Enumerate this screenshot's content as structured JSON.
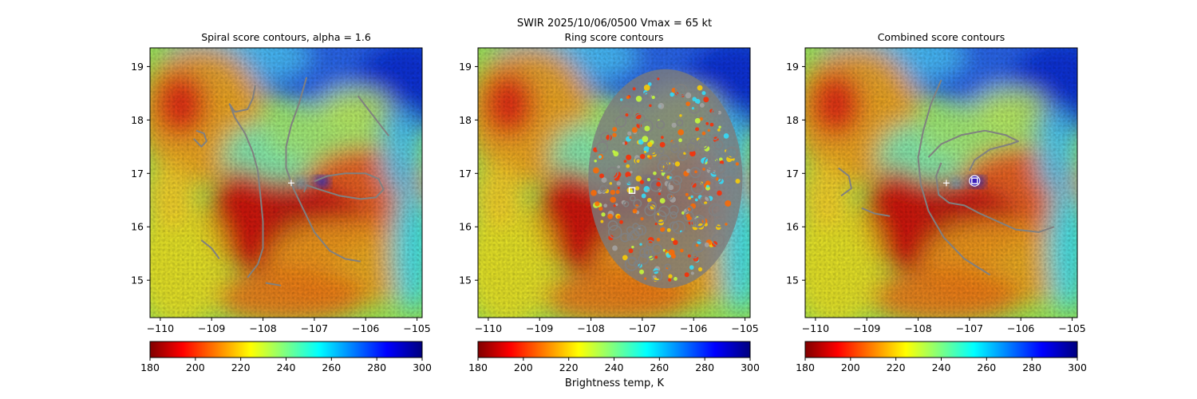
{
  "figure": {
    "suptitle": "SWIR  2025/10/06/0500    Vmax = 65 kt",
    "colorbar_label": "Brightness temp, K"
  },
  "chart_data": [
    {
      "type": "heatmap",
      "title": "Spiral score contours, alpha =  1.6",
      "xlim": [
        -110.2,
        -104.9
      ],
      "ylim": [
        14.3,
        19.35
      ],
      "xticks": [
        -110,
        -109,
        -108,
        -107,
        -106,
        -105
      ],
      "xtick_labels": [
        "−110",
        "−109",
        "−108",
        "−107",
        "−106",
        "−105"
      ],
      "yticks": [
        15,
        16,
        17,
        18,
        19
      ],
      "ytick_labels": [
        "15",
        "16",
        "17",
        "18",
        "19"
      ],
      "colorbar": {
        "range": [
          180,
          300
        ],
        "ticks": [
          180,
          200,
          220,
          240,
          260,
          280,
          300
        ],
        "tick_labels": [
          "180",
          "200",
          "220",
          "240",
          "260",
          "280",
          "300"
        ],
        "cmap": "jet_r"
      },
      "contours": [
        [
          [
            -109.3,
            17.8
          ],
          [
            -109.15,
            17.75
          ],
          [
            -109.1,
            17.6
          ],
          [
            -109.2,
            17.5
          ],
          [
            -109.35,
            17.65
          ]
        ],
        [
          [
            -108.15,
            18.65
          ],
          [
            -108.2,
            18.4
          ],
          [
            -108.3,
            18.2
          ],
          [
            -108.55,
            18.15
          ],
          [
            -108.65,
            18.3
          ],
          [
            -108.55,
            18.05
          ],
          [
            -108.35,
            17.75
          ],
          [
            -108.2,
            17.4
          ],
          [
            -108.1,
            17.05
          ],
          [
            -108.05,
            16.6
          ],
          [
            -108.0,
            16.1
          ],
          [
            -108.0,
            15.6
          ],
          [
            -108.1,
            15.3
          ],
          [
            -108.3,
            15.05
          ]
        ],
        [
          [
            -107.15,
            18.8
          ],
          [
            -107.3,
            18.3
          ],
          [
            -107.45,
            17.9
          ],
          [
            -107.55,
            17.5
          ],
          [
            -107.55,
            17.1
          ],
          [
            -107.4,
            16.7
          ],
          [
            -107.2,
            16.3
          ],
          [
            -107.0,
            15.9
          ],
          [
            -106.7,
            15.55
          ],
          [
            -106.4,
            15.4
          ],
          [
            -106.1,
            15.35
          ]
        ],
        [
          [
            -107.0,
            16.85
          ],
          [
            -106.75,
            16.95
          ],
          [
            -106.4,
            17.0
          ],
          [
            -106.0,
            17.0
          ],
          [
            -105.75,
            16.9
          ],
          [
            -105.65,
            16.7
          ],
          [
            -105.8,
            16.55
          ],
          [
            -106.1,
            16.52
          ],
          [
            -106.5,
            16.58
          ],
          [
            -106.9,
            16.7
          ],
          [
            -107.15,
            16.78
          ],
          [
            -107.2,
            16.65
          ]
        ],
        [
          [
            -106.15,
            18.45
          ],
          [
            -105.95,
            18.2
          ],
          [
            -105.75,
            17.95
          ],
          [
            -105.55,
            17.7
          ]
        ],
        [
          [
            -109.2,
            15.75
          ],
          [
            -109.0,
            15.6
          ],
          [
            -108.85,
            15.4
          ]
        ],
        [
          [
            -107.95,
            14.95
          ],
          [
            -107.65,
            14.9
          ]
        ]
      ],
      "centers": [
        {
          "shape": "plus",
          "lon": -107.45,
          "lat": 16.82
        }
      ]
    },
    {
      "type": "heatmap",
      "title": "Ring score contours",
      "xlim": [
        -110.2,
        -104.9
      ],
      "ylim": [
        14.3,
        19.35
      ],
      "xticks": [
        -110,
        -109,
        -108,
        -107,
        -106,
        -105
      ],
      "xtick_labels": [
        "−110",
        "−109",
        "−108",
        "−107",
        "−106",
        "−105"
      ],
      "yticks": [
        15,
        16,
        17,
        18,
        19
      ],
      "ytick_labels": [
        "15",
        "16",
        "17",
        "18",
        "19"
      ],
      "colorbar": {
        "range": [
          180,
          300
        ],
        "ticks": [
          180,
          200,
          220,
          240,
          260,
          280,
          300
        ],
        "tick_labels": [
          "180",
          "200",
          "220",
          "240",
          "260",
          "280",
          "300"
        ],
        "cmap": "jet_r"
      },
      "ring_region": {
        "center_lon": -106.55,
        "center_lat": 16.9,
        "radius_lon": 1.5,
        "radius_lat": 2.05
      },
      "contours": [],
      "centers": [
        {
          "shape": "square",
          "lon": -107.2,
          "lat": 16.68
        }
      ]
    },
    {
      "type": "heatmap",
      "title": "Combined score contours",
      "xlim": [
        -110.2,
        -104.9
      ],
      "ylim": [
        14.3,
        19.35
      ],
      "xticks": [
        -110,
        -109,
        -108,
        -107,
        -106,
        -105
      ],
      "xtick_labels": [
        "−110",
        "−109",
        "−108",
        "−107",
        "−106",
        "−105"
      ],
      "yticks": [
        15,
        16,
        17,
        18,
        19
      ],
      "ytick_labels": [
        "15",
        "16",
        "17",
        "18",
        "19"
      ],
      "colorbar": {
        "range": [
          180,
          300
        ],
        "ticks": [
          180,
          200,
          220,
          240,
          260,
          280,
          300
        ],
        "tick_labels": [
          "180",
          "200",
          "220",
          "240",
          "260",
          "280",
          "300"
        ],
        "cmap": "jet_r"
      },
      "contours": [
        [
          [
            -107.55,
            18.75
          ],
          [
            -107.75,
            18.3
          ],
          [
            -107.9,
            17.8
          ],
          [
            -108.0,
            17.3
          ],
          [
            -107.95,
            16.8
          ],
          [
            -107.8,
            16.3
          ],
          [
            -107.5,
            15.8
          ],
          [
            -107.1,
            15.4
          ],
          [
            -106.6,
            15.1
          ]
        ],
        [
          [
            -107.8,
            17.3
          ],
          [
            -107.55,
            17.55
          ],
          [
            -107.15,
            17.72
          ],
          [
            -106.7,
            17.8
          ],
          [
            -106.3,
            17.72
          ],
          [
            -106.05,
            17.6
          ],
          [
            -106.2,
            17.55
          ],
          [
            -106.6,
            17.45
          ],
          [
            -106.9,
            17.25
          ],
          [
            -107.0,
            17.05
          ]
        ],
        [
          [
            -107.55,
            17.2
          ],
          [
            -107.65,
            16.95
          ],
          [
            -107.6,
            16.6
          ],
          [
            -107.4,
            16.45
          ],
          [
            -107.1,
            16.4
          ],
          [
            -106.8,
            16.25
          ],
          [
            -106.45,
            16.1
          ],
          [
            -106.1,
            15.95
          ],
          [
            -105.65,
            15.9
          ],
          [
            -105.35,
            16.0
          ]
        ],
        [
          [
            -109.55,
            17.1
          ],
          [
            -109.35,
            16.95
          ],
          [
            -109.3,
            16.72
          ],
          [
            -109.5,
            16.58
          ]
        ],
        [
          [
            -109.1,
            16.35
          ],
          [
            -108.85,
            16.25
          ],
          [
            -108.55,
            16.2
          ]
        ]
      ],
      "centers": [
        {
          "shape": "plus",
          "lon": -107.45,
          "lat": 16.82
        },
        {
          "shape": "circle",
          "lon": -106.9,
          "lat": 16.86
        },
        {
          "shape": "square",
          "lon": -106.9,
          "lat": 16.86
        }
      ]
    }
  ]
}
